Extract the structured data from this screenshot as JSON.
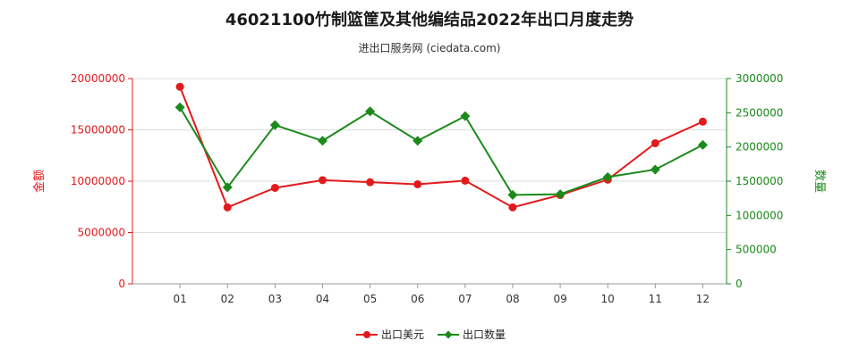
{
  "header": {
    "title": "46021100竹制篮筐及其他编结品2022年出口月度走势",
    "subtitle": "进出口服务网 (ciedata.com)"
  },
  "colors": {
    "left_series": "#e31a1c",
    "right_series": "#1a8a1a",
    "grid": "#dddddd",
    "axis": "#999999"
  },
  "chart_data": {
    "type": "line",
    "categories": [
      "01",
      "02",
      "03",
      "04",
      "05",
      "06",
      "07",
      "08",
      "09",
      "10",
      "11",
      "12"
    ],
    "left_axis": {
      "label": "金额",
      "ylim": [
        0,
        20000000
      ],
      "ticks": [
        0,
        5000000,
        10000000,
        15000000,
        20000000
      ],
      "tick_labels": [
        "0",
        "5000000",
        "10000000",
        "15000000",
        "20000000"
      ]
    },
    "right_axis": {
      "label": "数量",
      "ylim": [
        0,
        3000000
      ],
      "ticks": [
        0,
        500000,
        1000000,
        1500000,
        2000000,
        2500000,
        3000000
      ],
      "tick_labels": [
        "0",
        "500000",
        "1000000",
        "1500000",
        "2000000",
        "2500000",
        "3000000"
      ]
    },
    "series": [
      {
        "name": "出口美元",
        "axis": "left",
        "marker": "circle",
        "values": [
          19200000,
          7450000,
          9350000,
          10100000,
          9900000,
          9700000,
          10050000,
          7450000,
          8650000,
          10150000,
          13700000,
          15800000
        ]
      },
      {
        "name": "出口数量",
        "axis": "right",
        "marker": "diamond",
        "values": [
          2580000,
          1410000,
          2320000,
          2090000,
          2520000,
          2090000,
          2450000,
          1300000,
          1310000,
          1560000,
          1670000,
          2030000
        ]
      }
    ],
    "legend_position": "bottom-center",
    "grid": "horizontal"
  }
}
